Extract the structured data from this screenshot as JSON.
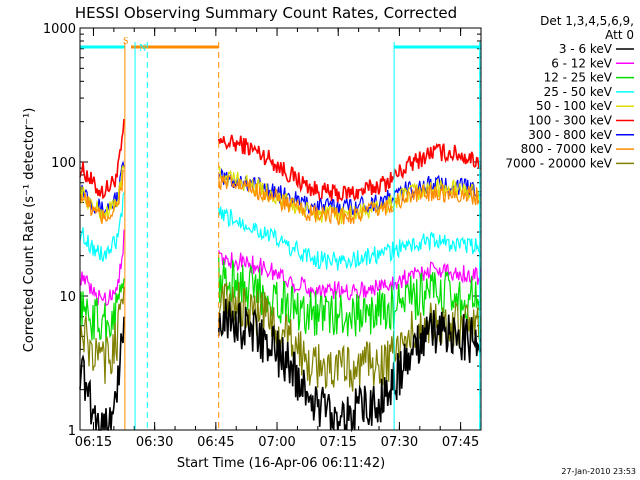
{
  "chart_data": {
    "type": "line",
    "title": "HESSI Observing Summary Count Rates, Corrected",
    "xlabel": "Start Time (16-Apr-06 06:11:42)",
    "ylabel": "Corrected Count Rate (s⁻¹ detector⁻¹)",
    "y_scale": "log",
    "ylim": [
      1,
      1000
    ],
    "xlim_minutes": [
      "06:11:42",
      "07:50:00"
    ],
    "x_ticks": [
      "06:15",
      "06:30",
      "06:45",
      "07:00",
      "07:15",
      "07:30",
      "07:45"
    ],
    "y_ticks": [
      "1",
      "10",
      "100",
      "1000"
    ],
    "legend": {
      "placement": "right",
      "header": [
        "Det 1,3,4,5,6,9,",
        "Att 0"
      ],
      "entries": [
        {
          "label": "3 - 6 keV",
          "color": "#000000"
        },
        {
          "label": "6 - 12 keV",
          "color": "#ff00ff"
        },
        {
          "label": "12 - 25 keV",
          "color": "#00dd00"
        },
        {
          "label": "25 - 50 keV",
          "color": "#00ffff"
        },
        {
          "label": "50 - 100 keV",
          "color": "#dddd00"
        },
        {
          "label": "100 - 300 keV",
          "color": "#ff0000"
        },
        {
          "label": "300 - 800 keV",
          "color": "#0000ff"
        },
        {
          "label": "800 - 7000 keV",
          "color": "#ff8c00"
        },
        {
          "label": "7000 - 20000 keV",
          "color": "#808000"
        }
      ]
    },
    "segments_minutes_after_start": [
      [
        0,
        11
      ],
      [
        34,
        98.3
      ]
    ],
    "series": [
      {
        "color": "#ff0000",
        "seg1": [
          90,
          80,
          65,
          60,
          66,
          80,
          200
        ],
        "seg2": [
          140,
          135,
          110,
          80,
          62,
          57,
          60,
          70,
          95,
          120,
          115,
          100
        ]
      },
      {
        "color": "#0000ff",
        "seg1": [
          65,
          58,
          48,
          44,
          47,
          55,
          110
        ],
        "seg2": [
          75,
          72,
          64,
          53,
          47,
          46,
          48,
          52,
          63,
          68,
          66,
          62
        ]
      },
      {
        "color": "#dddd00",
        "seg1": [
          60,
          52,
          45,
          41,
          44,
          52,
          100
        ],
        "seg2": [
          80,
          72,
          60,
          48,
          41,
          40,
          42,
          47,
          58,
          64,
          62,
          58
        ]
      },
      {
        "color": "#ff8c00",
        "seg1": [
          57,
          49,
          42,
          38,
          41,
          48,
          90
        ],
        "seg2": [
          70,
          66,
          58,
          47,
          40,
          39,
          41,
          46,
          55,
          60,
          58,
          55
        ]
      },
      {
        "color": "#00ffff",
        "seg1": [
          30,
          26,
          22,
          20,
          22,
          26,
          60
        ],
        "seg2": [
          40,
          36,
          29,
          23,
          19,
          18,
          19,
          21,
          24,
          26,
          24,
          23
        ]
      },
      {
        "color": "#ff00ff",
        "seg1": [
          14,
          12,
          10,
          9.5,
          10,
          12,
          30
        ],
        "seg2": [
          19,
          18,
          16,
          13,
          11,
          11,
          11,
          12,
          14,
          16,
          15,
          14
        ]
      },
      {
        "color": "#00dd00",
        "seg1": [
          8,
          7.3,
          6.6,
          6.2,
          6.7,
          8,
          20
        ],
        "seg2": [
          13,
          12,
          10.5,
          8.5,
          7.5,
          7.2,
          7.3,
          7.8,
          9.5,
          10.5,
          10,
          9.5
        ]
      },
      {
        "color": "#808000",
        "seg1": [
          5.5,
          4.5,
          3.5,
          3.2,
          3.5,
          5,
          15
        ],
        "seg2": [
          9,
          8.5,
          7,
          4.5,
          3,
          2.8,
          3,
          3.2,
          5,
          6.5,
          6,
          5.5
        ]
      },
      {
        "color": "#000000",
        "seg1": [
          3,
          2,
          1.3,
          1,
          1.2,
          1.8,
          8
        ],
        "seg2": [
          7,
          6,
          4.5,
          3,
          1.6,
          1.3,
          1.4,
          1.8,
          3.5,
          5.5,
          5,
          4.5
        ]
      }
    ],
    "bars": [
      {
        "label": "",
        "color": "#00ffff",
        "start_min": 0,
        "end_min": 11
      },
      {
        "label": "S",
        "color": "#ff8c00",
        "start_min": 12.5,
        "end_min": 34
      },
      {
        "label": "",
        "color": "#00ffff",
        "start_min": 77,
        "end_min": 98.3
      }
    ],
    "markers": [
      {
        "label": "N",
        "color": "#00ffff",
        "min": 13.5
      },
      {
        "label": "",
        "color": "#00ffff",
        "min": 77
      },
      {
        "label": "",
        "color": "#00ffff",
        "min": 98
      },
      {
        "label": "",
        "color": "#ff8c00",
        "min": 11
      }
    ],
    "dashed_lines": [
      {
        "color": "#00ffff",
        "min": 16.5
      },
      {
        "color": "#ff8c00",
        "min": 34
      },
      {
        "color": "#00ffff",
        "min": 98
      }
    ],
    "footer_stamp": "27-Jan-2010 23:53"
  }
}
